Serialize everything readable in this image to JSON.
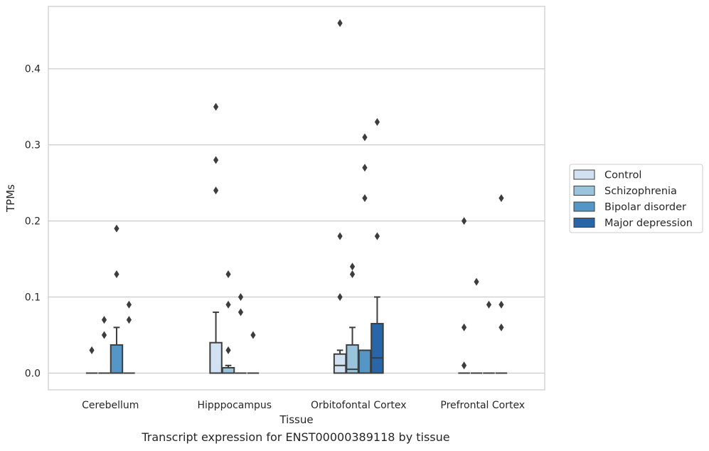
{
  "caption": "Transcript expression for ENST00000389118 by tissue",
  "chart_data": {
    "type": "box",
    "xlabel": "Tissue",
    "ylabel": "TPMs",
    "ylim": [
      -0.022,
      0.482
    ],
    "yticks": [
      0.0,
      0.1,
      0.2,
      0.3,
      0.4
    ],
    "ytick_labels": [
      "0.0",
      "0.1",
      "0.2",
      "0.3",
      "0.4"
    ],
    "grid": "horizontal",
    "legend_position": "right",
    "categories": [
      "Cerebellum",
      "Hipppocampus",
      "Orbitofontal Cortex",
      "Prefrontal Cortex"
    ],
    "series": [
      {
        "name": "Control",
        "color": "#d1e1f1",
        "boxes": [
          {
            "q1": 0,
            "median": 0,
            "q3": 0,
            "whisker_low": 0,
            "whisker_high": 0,
            "outliers": [
              0.03
            ]
          },
          {
            "q1": 0,
            "median": 0,
            "q3": 0.04,
            "whisker_low": 0,
            "whisker_high": 0.08,
            "outliers": [
              0.24,
              0.28,
              0.35
            ]
          },
          {
            "q1": 0,
            "median": 0.01,
            "q3": 0.025,
            "whisker_low": 0,
            "whisker_high": 0.03,
            "outliers": [
              0.1,
              0.18,
              0.46
            ]
          },
          {
            "q1": 0,
            "median": 0,
            "q3": 0,
            "whisker_low": 0,
            "whisker_high": 0,
            "outliers": [
              0.01,
              0.06,
              0.2
            ]
          }
        ]
      },
      {
        "name": "Schizophrenia",
        "color": "#9ac3dc",
        "boxes": [
          {
            "q1": 0,
            "median": 0,
            "q3": 0,
            "whisker_low": 0,
            "whisker_high": 0,
            "outliers": [
              0.05,
              0.07
            ]
          },
          {
            "q1": 0,
            "median": 0,
            "q3": 0.007,
            "whisker_low": 0,
            "whisker_high": 0.01,
            "outliers": [
              0.03,
              0.09,
              0.13
            ]
          },
          {
            "q1": 0,
            "median": 0.005,
            "q3": 0.037,
            "whisker_low": 0,
            "whisker_high": 0.06,
            "outliers": [
              0.13,
              0.14
            ]
          },
          {
            "q1": 0,
            "median": 0,
            "q3": 0,
            "whisker_low": 0,
            "whisker_high": 0,
            "outliers": [
              0.12
            ]
          }
        ]
      },
      {
        "name": "Bipolar disorder",
        "color": "#5496c6",
        "boxes": [
          {
            "q1": 0,
            "median": 0,
            "q3": 0.037,
            "whisker_low": 0,
            "whisker_high": 0.06,
            "outliers": [
              0.13,
              0.19
            ]
          },
          {
            "q1": 0,
            "median": 0,
            "q3": 0,
            "whisker_low": 0,
            "whisker_high": 0,
            "outliers": [
              0.08,
              0.1
            ]
          },
          {
            "q1": 0,
            "median": 0,
            "q3": 0.03,
            "whisker_low": 0,
            "whisker_high": 0.03,
            "outliers": [
              0.23,
              0.27,
              0.31
            ]
          },
          {
            "q1": 0,
            "median": 0,
            "q3": 0,
            "whisker_low": 0,
            "whisker_high": 0,
            "outliers": [
              0.09
            ]
          }
        ]
      },
      {
        "name": "Major depression",
        "color": "#2766a8",
        "boxes": [
          {
            "q1": 0,
            "median": 0,
            "q3": 0,
            "whisker_low": 0,
            "whisker_high": 0,
            "outliers": [
              0.07,
              0.09
            ]
          },
          {
            "q1": 0,
            "median": 0,
            "q3": 0,
            "whisker_low": 0,
            "whisker_high": 0,
            "outliers": [
              0.05
            ]
          },
          {
            "q1": 0,
            "median": 0.02,
            "q3": 0.065,
            "whisker_low": 0,
            "whisker_high": 0.1,
            "outliers": [
              0.18,
              0.33
            ]
          },
          {
            "q1": 0,
            "median": 0,
            "q3": 0,
            "whisker_low": 0,
            "whisker_high": 0,
            "outliers": [
              0.06,
              0.09,
              0.23
            ]
          }
        ]
      }
    ]
  }
}
